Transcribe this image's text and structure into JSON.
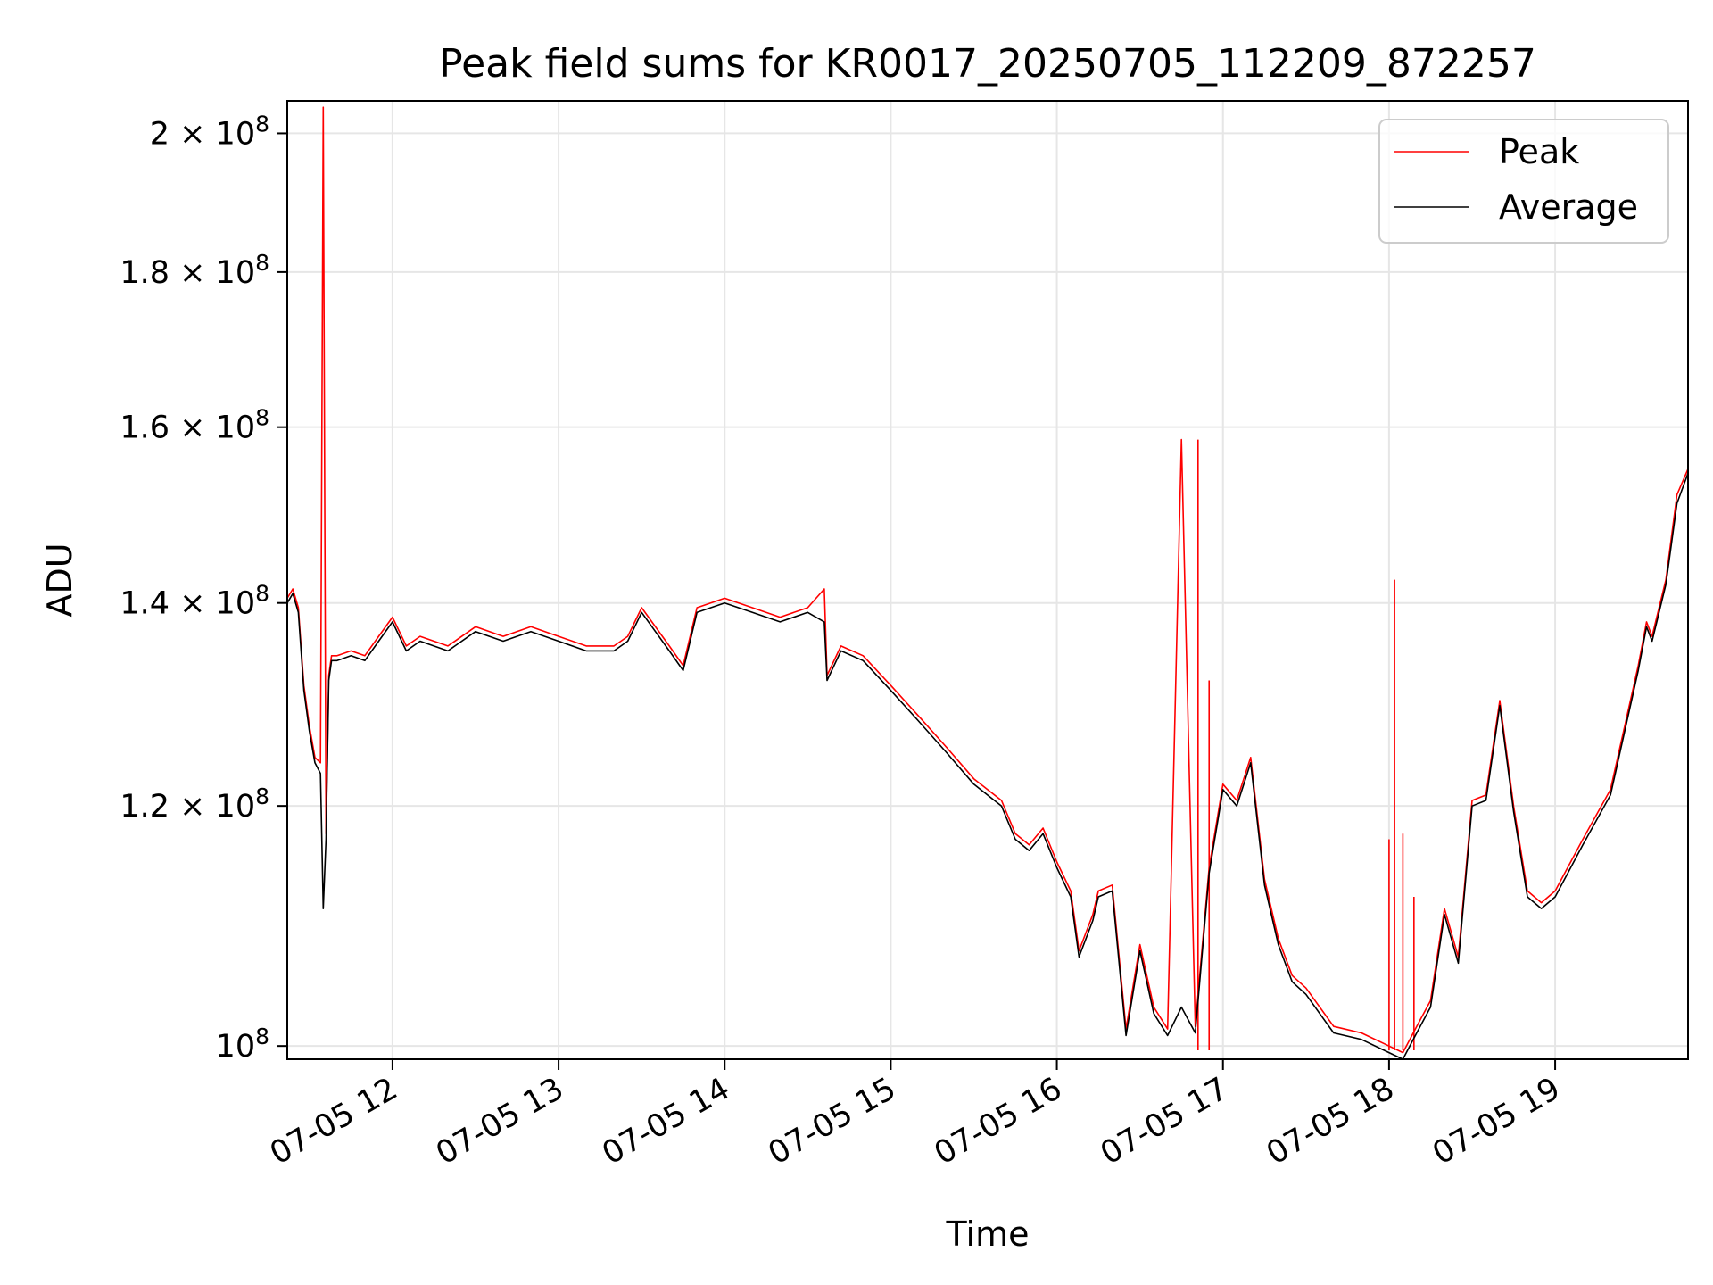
{
  "chart_data": {
    "type": "line",
    "title": "Peak field sums for KR0017_20250705_112209_872257",
    "xlabel": "Time",
    "ylabel": "ADU",
    "yscale": "log",
    "grid": true,
    "legend_position": "top-right",
    "xlim": [
      "2025-07-05 11:22",
      "2025-07-05 19:48"
    ],
    "ylim": [
      99000000,
      205000000
    ],
    "x_ticks": [
      "2025-07-05 12:00",
      "2025-07-05 13:00",
      "2025-07-05 14:00",
      "2025-07-05 15:00",
      "2025-07-05 16:00",
      "2025-07-05 17:00",
      "2025-07-05 18:00",
      "2025-07-05 19:00"
    ],
    "x_tick_labels": [
      "07-05 12",
      "07-05 13",
      "07-05 14",
      "07-05 15",
      "07-05 16",
      "07-05 17",
      "07-05 18",
      "07-05 19"
    ],
    "y_ticks": [
      {
        "value": 200000000,
        "mant": "2",
        "exp": "8"
      },
      {
        "value": 180000000,
        "mant": "1.8",
        "exp": "8"
      },
      {
        "value": 160000000,
        "mant": "1.6",
        "exp": "8"
      },
      {
        "value": 140000000,
        "mant": "1.4",
        "exp": "8"
      },
      {
        "value": 120000000,
        "mant": "1.2",
        "exp": "8"
      },
      {
        "value": 100000000,
        "mant": "",
        "exp": "8"
      }
    ],
    "y_tick_base": "10",
    "y_tick_times": "×",
    "series": [
      {
        "name": "Peak",
        "color": "#ff0000"
      },
      {
        "name": "Average",
        "color": "#000000"
      }
    ],
    "x": [
      "2025-07-05 11:22",
      "2025-07-05 11:24",
      "2025-07-05 11:26",
      "2025-07-05 11:28",
      "2025-07-05 11:30",
      "2025-07-05 11:32",
      "2025-07-05 11:34",
      "2025-07-05 11:35",
      "2025-07-05 11:36",
      "2025-07-05 11:37",
      "2025-07-05 11:38",
      "2025-07-05 11:40",
      "2025-07-05 11:45",
      "2025-07-05 11:50",
      "2025-07-05 11:55",
      "2025-07-05 12:00",
      "2025-07-05 12:05",
      "2025-07-05 12:10",
      "2025-07-05 12:20",
      "2025-07-05 12:30",
      "2025-07-05 12:40",
      "2025-07-05 12:50",
      "2025-07-05 13:00",
      "2025-07-05 13:10",
      "2025-07-05 13:20",
      "2025-07-05 13:25",
      "2025-07-05 13:30",
      "2025-07-05 13:40",
      "2025-07-05 13:45",
      "2025-07-05 13:50",
      "2025-07-05 14:00",
      "2025-07-05 14:10",
      "2025-07-05 14:20",
      "2025-07-05 14:30",
      "2025-07-05 14:36",
      "2025-07-05 14:37",
      "2025-07-05 14:42",
      "2025-07-05 14:50",
      "2025-07-05 15:00",
      "2025-07-05 15:10",
      "2025-07-05 15:20",
      "2025-07-05 15:30",
      "2025-07-05 15:40",
      "2025-07-05 15:45",
      "2025-07-05 15:50",
      "2025-07-05 15:55",
      "2025-07-05 16:00",
      "2025-07-05 16:05",
      "2025-07-05 16:08",
      "2025-07-05 16:13",
      "2025-07-05 16:15",
      "2025-07-05 16:20",
      "2025-07-05 16:25",
      "2025-07-05 16:30",
      "2025-07-05 16:35",
      "2025-07-05 16:40",
      "2025-07-05 16:45",
      "2025-07-05 16:50",
      "2025-07-05 16:55",
      "2025-07-05 17:00",
      "2025-07-05 17:05",
      "2025-07-05 17:10",
      "2025-07-05 17:15",
      "2025-07-05 17:20",
      "2025-07-05 17:25",
      "2025-07-05 17:30",
      "2025-07-05 17:40",
      "2025-07-05 17:50",
      "2025-07-05 18:00",
      "2025-07-05 18:05",
      "2025-07-05 18:10",
      "2025-07-05 18:15",
      "2025-07-05 18:20",
      "2025-07-05 18:25",
      "2025-07-05 18:30",
      "2025-07-05 18:35",
      "2025-07-05 18:40",
      "2025-07-05 18:45",
      "2025-07-05 18:50",
      "2025-07-05 18:55",
      "2025-07-05 19:00",
      "2025-07-05 19:10",
      "2025-07-05 19:20",
      "2025-07-05 19:30",
      "2025-07-05 19:33",
      "2025-07-05 19:35",
      "2025-07-05 19:40",
      "2025-07-05 19:44",
      "2025-07-05 19:48"
    ],
    "average": [
      140000000,
      141000000,
      139000000,
      131000000,
      127000000,
      124000000,
      123000000,
      111000000,
      117000000,
      132000000,
      134000000,
      134000000,
      134500000,
      134000000,
      136000000,
      138000000,
      135000000,
      136000000,
      135000000,
      137000000,
      136000000,
      137000000,
      136000000,
      135000000,
      135000000,
      136000000,
      139000000,
      135000000,
      133000000,
      139000000,
      140000000,
      139000000,
      138000000,
      139000000,
      138000000,
      132000000,
      135000000,
      134000000,
      131000000,
      128000000,
      125000000,
      122000000,
      120000000,
      117000000,
      116000000,
      117500000,
      114500000,
      112000000,
      107000000,
      110000000,
      112000000,
      112500000,
      100800000,
      107500000,
      102500000,
      100800000,
      103000000,
      101000000,
      114000000,
      121500000,
      120000000,
      124000000,
      113000000,
      108000000,
      105000000,
      104000000,
      101000000,
      100500000,
      99500000,
      99000000,
      101000000,
      103000000,
      110500000,
      106500000,
      120000000,
      120500000,
      129500000,
      119500000,
      112000000,
      111000000,
      112000000,
      116500000,
      121000000,
      133000000,
      137500000,
      136000000,
      142000000,
      151000000,
      154500000
    ],
    "peak": [
      140500000,
      141500000,
      139500000,
      131500000,
      127500000,
      124500000,
      124000000,
      204000000,
      117500000,
      132500000,
      134500000,
      134500000,
      135000000,
      134500000,
      136500000,
      138500000,
      135500000,
      136500000,
      135500000,
      137500000,
      136500000,
      137500000,
      136500000,
      135500000,
      135500000,
      136500000,
      139500000,
      135500000,
      133500000,
      139500000,
      140500000,
      139500000,
      138500000,
      139500000,
      141500000,
      132500000,
      135500000,
      134500000,
      131500000,
      128500000,
      125500000,
      122500000,
      120500000,
      117500000,
      116500000,
      118000000,
      115000000,
      112500000,
      107500000,
      110500000,
      112500000,
      113000000,
      101300000,
      108000000,
      103000000,
      101300000,
      158500000,
      101500000,
      114500000,
      122000000,
      120500000,
      124500000,
      113500000,
      108500000,
      105500000,
      104500000,
      101500000,
      101000000,
      100000000,
      99500000,
      101500000,
      103500000,
      111000000,
      107000000,
      120500000,
      121000000,
      130000000,
      120000000,
      112500000,
      111500000,
      112500000,
      117000000,
      121500000,
      133500000,
      138000000,
      136500000,
      142500000,
      152000000,
      155000000
    ],
    "peak_spikes": [
      {
        "x": "2025-07-05 16:51",
        "value": 158500000
      },
      {
        "x": "2025-07-05 16:55",
        "value": 132000000
      },
      {
        "x": "2025-07-05 18:00",
        "value": 117000000
      },
      {
        "x": "2025-07-05 18:02",
        "value": 142500000
      },
      {
        "x": "2025-07-05 18:05",
        "value": 117500000
      },
      {
        "x": "2025-07-05 18:09",
        "value": 112000000
      }
    ]
  }
}
